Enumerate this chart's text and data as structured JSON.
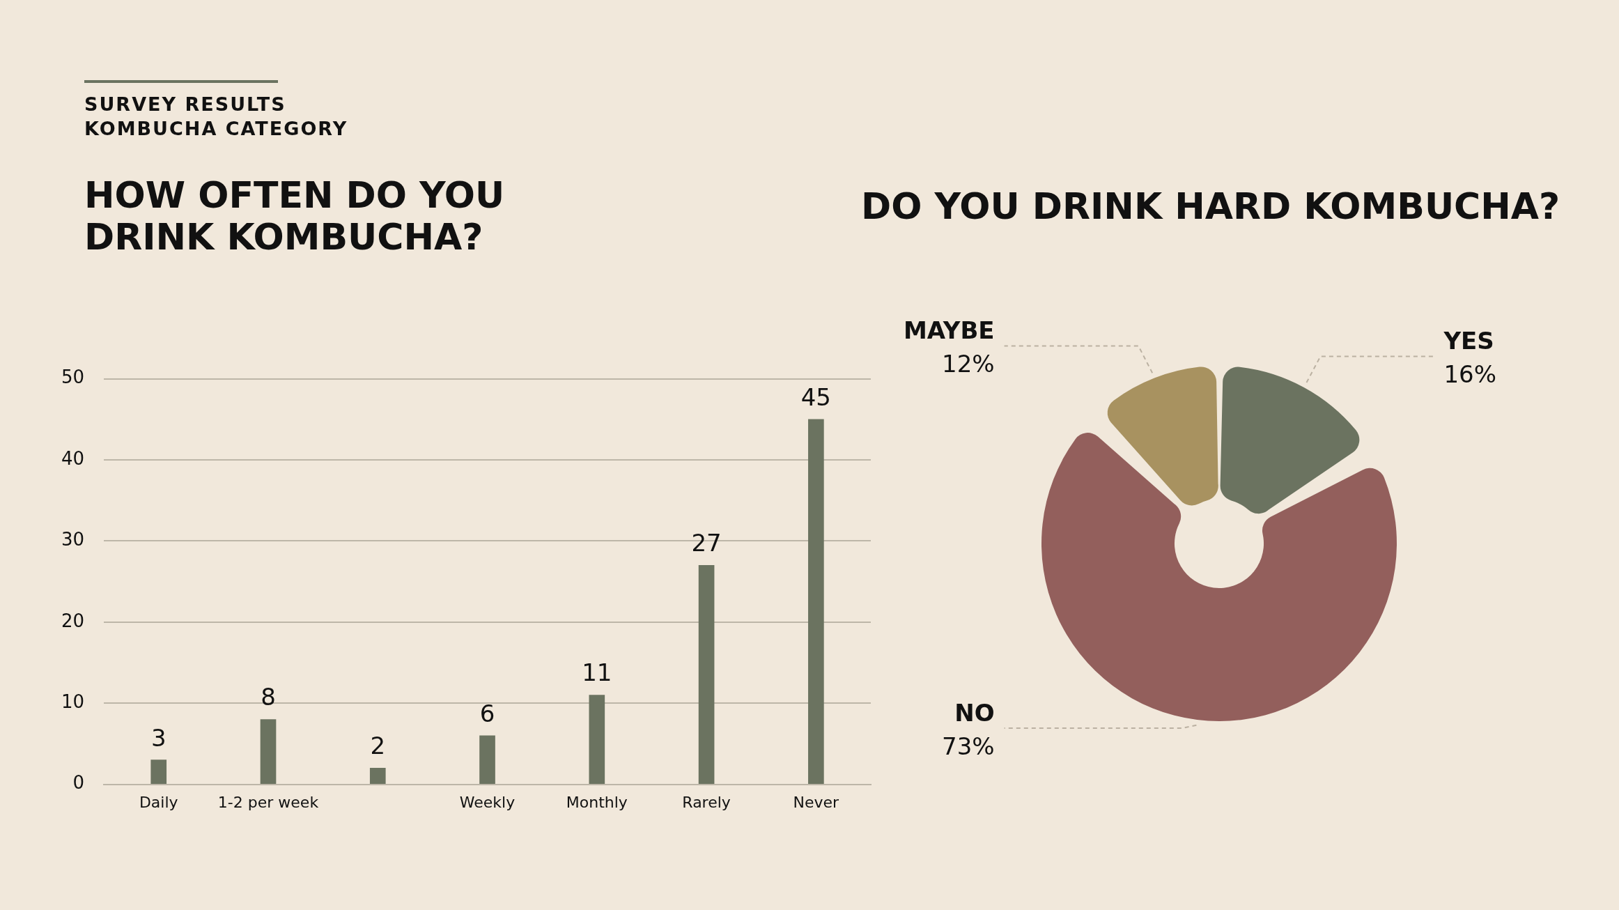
{
  "chart_data": [
    {
      "type": "bar",
      "title": "HOW OFTEN DO YOU DRINK KOMBUCHA?",
      "annotations": [
        "SURVEY RESULTS",
        "KOMBUCHA CATEGORY"
      ],
      "categories": [
        "Daily",
        "1-2 per week",
        null,
        "Weekly",
        "Monthly",
        "Rarely",
        "Never"
      ],
      "values": [
        3,
        8,
        2,
        6,
        11,
        27,
        45
      ],
      "color": "#6b7360",
      "ylim": [
        0,
        50
      ],
      "yticks": [
        0,
        10,
        20,
        30,
        40,
        50
      ],
      "grid": "y",
      "data_labels": true,
      "legend": false
    },
    {
      "type": "donut",
      "title": "DO YOU DRINK HARD KOMBUCHA?",
      "categories": [
        "YES",
        "NO",
        "MAYBE"
      ],
      "values": [
        16,
        73,
        12
      ],
      "colors": [
        "#6b7360",
        "#935f5c",
        "#a89260"
      ],
      "value_labels": [
        "16%",
        "73%",
        "12%"
      ],
      "legend": false
    }
  ]
}
